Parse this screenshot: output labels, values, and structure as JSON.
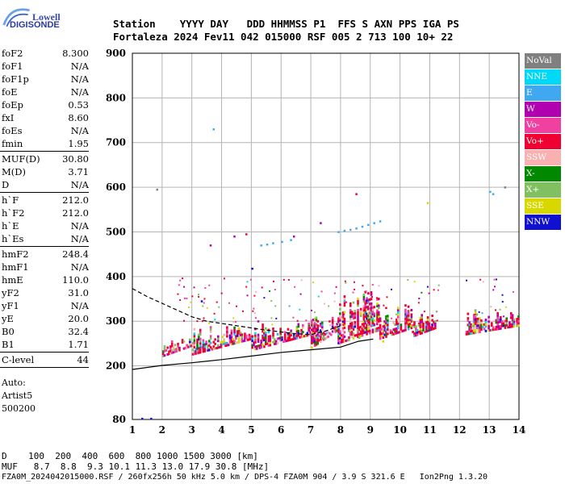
{
  "logo": {
    "top": "Lowell",
    "bottom": "DIGISONDE"
  },
  "header": {
    "line1": "Station    YYYY DAY   DDD HHMMSS P1  FFS S AXN PPS IGA PS",
    "line2": "Fortaleza 2024 Fev11 042 015000 RSF 005 2 713 100 10+ 22"
  },
  "params": {
    "group1": [
      {
        "k": "foF2",
        "v": "8.300"
      },
      {
        "k": "foF1",
        "v": "N/A"
      },
      {
        "k": "foF1p",
        "v": "N/A"
      },
      {
        "k": "foE",
        "v": "N/A"
      },
      {
        "k": "foEp",
        "v": "0.53"
      },
      {
        "k": "fxI",
        "v": "8.60"
      },
      {
        "k": "foEs",
        "v": "N/A"
      },
      {
        "k": "fmin",
        "v": "1.95"
      }
    ],
    "group2": [
      {
        "k": "MUF(D)",
        "v": "30.80"
      },
      {
        "k": "M(D)",
        "v": "3.71"
      },
      {
        "k": "D",
        "v": "N/A"
      }
    ],
    "group3": [
      {
        "k": "h`F",
        "v": "212.0"
      },
      {
        "k": "h`F2",
        "v": "212.0"
      },
      {
        "k": "h`E",
        "v": "N/A"
      },
      {
        "k": "h`Es",
        "v": "N/A"
      }
    ],
    "group4": [
      {
        "k": "hmF2",
        "v": "248.4"
      },
      {
        "k": "hmF1",
        "v": "N/A"
      },
      {
        "k": "hmE",
        "v": "110.0"
      },
      {
        "k": "yF2",
        "v": "31.0"
      },
      {
        "k": "yF1",
        "v": "N/A"
      },
      {
        "k": "yE",
        "v": "20.0"
      },
      {
        "k": "B0",
        "v": "32.4"
      },
      {
        "k": "B1",
        "v": "1.71"
      }
    ],
    "group5": [
      {
        "k": "C-level",
        "v": "44"
      }
    ],
    "auto": [
      "Auto:",
      "Artist5",
      "500200"
    ]
  },
  "legend": [
    {
      "label": "NoVal",
      "color": "#808080"
    },
    {
      "label": "NNE",
      "color": "#00d8f8"
    },
    {
      "label": "E",
      "color": "#40a8f0"
    },
    {
      "label": "W",
      "color": "#b000b0"
    },
    {
      "label": "Vo-",
      "color": "#f040a0"
    },
    {
      "label": "Vo+",
      "color": "#f00030"
    },
    {
      "label": "SSW",
      "color": "#f8b0b0"
    },
    {
      "label": "X-",
      "color": "#008800"
    },
    {
      "label": "X+",
      "color": "#80c060"
    },
    {
      "label": "SSE",
      "color": "#d8d800"
    },
    {
      "label": "NNW",
      "color": "#1010d0"
    }
  ],
  "footer": {
    "line1": "D    100  200  400  600  800 1000 1500 3000 [km]",
    "line2": "MUF   8.7  8.8  9.3 10.1 11.3 13.0 17.9 30.8 [MHz]",
    "line3": "FZA0M_2024042015000.RSF / 260fx256h 50 kHz 5.0 km / DPS-4 FZA0M 904 / 3.9 S 321.6 E   Ion2Png 1.3.20"
  },
  "chart_data": {
    "type": "scatter",
    "title": "",
    "xlabel": "",
    "ylabel": "",
    "xlim": [
      1,
      14
    ],
    "ylim": [
      80,
      900
    ],
    "xticks": [
      1,
      2,
      3,
      4,
      5,
      6,
      7,
      8,
      9,
      10,
      11,
      12,
      13,
      14
    ],
    "yticks": [
      80,
      200,
      300,
      400,
      500,
      600,
      700,
      800,
      900
    ],
    "grid": true,
    "legend_position": "right",
    "series": [
      {
        "name": "E",
        "color": "#40a8f0",
        "points": [
          [
            5.3,
            470
          ],
          [
            5.5,
            472
          ],
          [
            5.7,
            475
          ],
          [
            6.0,
            478
          ],
          [
            6.3,
            482
          ],
          [
            7.9,
            500
          ],
          [
            8.1,
            503
          ],
          [
            8.3,
            505
          ],
          [
            8.5,
            508
          ],
          [
            8.7,
            512
          ],
          [
            8.9,
            516
          ],
          [
            9.1,
            520
          ],
          [
            9.3,
            524
          ],
          [
            13.0,
            590
          ],
          [
            13.1,
            585
          ],
          [
            3.7,
            730
          ]
        ]
      },
      {
        "name": "W",
        "color": "#b000b0",
        "points": [
          [
            3.6,
            470
          ],
          [
            4.4,
            490
          ],
          [
            5.2,
            300
          ],
          [
            6.4,
            490
          ],
          [
            7.3,
            520
          ]
        ]
      },
      {
        "name": "NoVal",
        "color": "#808080",
        "points": [
          [
            1.8,
            595
          ],
          [
            13.5,
            600
          ]
        ]
      },
      {
        "name": "X+",
        "color": "#80c060",
        "points": [
          [
            2.7,
            255
          ],
          [
            4.6,
            275
          ],
          [
            8.6,
            263
          ],
          [
            12.4,
            290
          ]
        ]
      },
      {
        "name": "SSE",
        "color": "#d8d800",
        "points": [
          [
            10.9,
            565
          ],
          [
            4.0,
            265
          ],
          [
            9.4,
            255
          ]
        ]
      },
      {
        "name": "Vo+",
        "color": "#f00030",
        "points": [
          [
            8.5,
            585
          ],
          [
            4.8,
            495
          ],
          [
            7.6,
            300
          ],
          [
            9.5,
            330
          ]
        ]
      },
      {
        "name": "NNW",
        "color": "#1010d0",
        "points": [
          [
            5.0,
            418
          ],
          [
            3.3,
            345
          ],
          [
            1.3,
            82
          ],
          [
            1.6,
            82
          ]
        ]
      }
    ],
    "traces": [
      {
        "name": "solid",
        "points": [
          [
            1,
            192
          ],
          [
            2,
            201
          ],
          [
            3,
            207
          ],
          [
            4,
            214
          ],
          [
            5,
            222
          ],
          [
            6,
            230
          ],
          [
            7,
            236
          ],
          [
            8,
            242
          ],
          [
            8.6,
            255
          ],
          [
            9.1,
            260
          ]
        ]
      },
      {
        "name": "dashed",
        "points": [
          [
            1,
            373
          ],
          [
            1.5,
            355
          ],
          [
            2,
            340
          ],
          [
            2.5,
            325
          ],
          [
            3,
            310
          ],
          [
            3.5,
            300
          ],
          [
            4,
            295
          ],
          [
            4.5,
            290
          ],
          [
            5,
            285
          ],
          [
            5.5,
            280
          ],
          [
            6,
            276
          ],
          [
            6.5,
            272
          ],
          [
            7,
            270
          ],
          [
            7.5,
            278
          ],
          [
            8,
            290
          ]
        ]
      }
    ]
  }
}
